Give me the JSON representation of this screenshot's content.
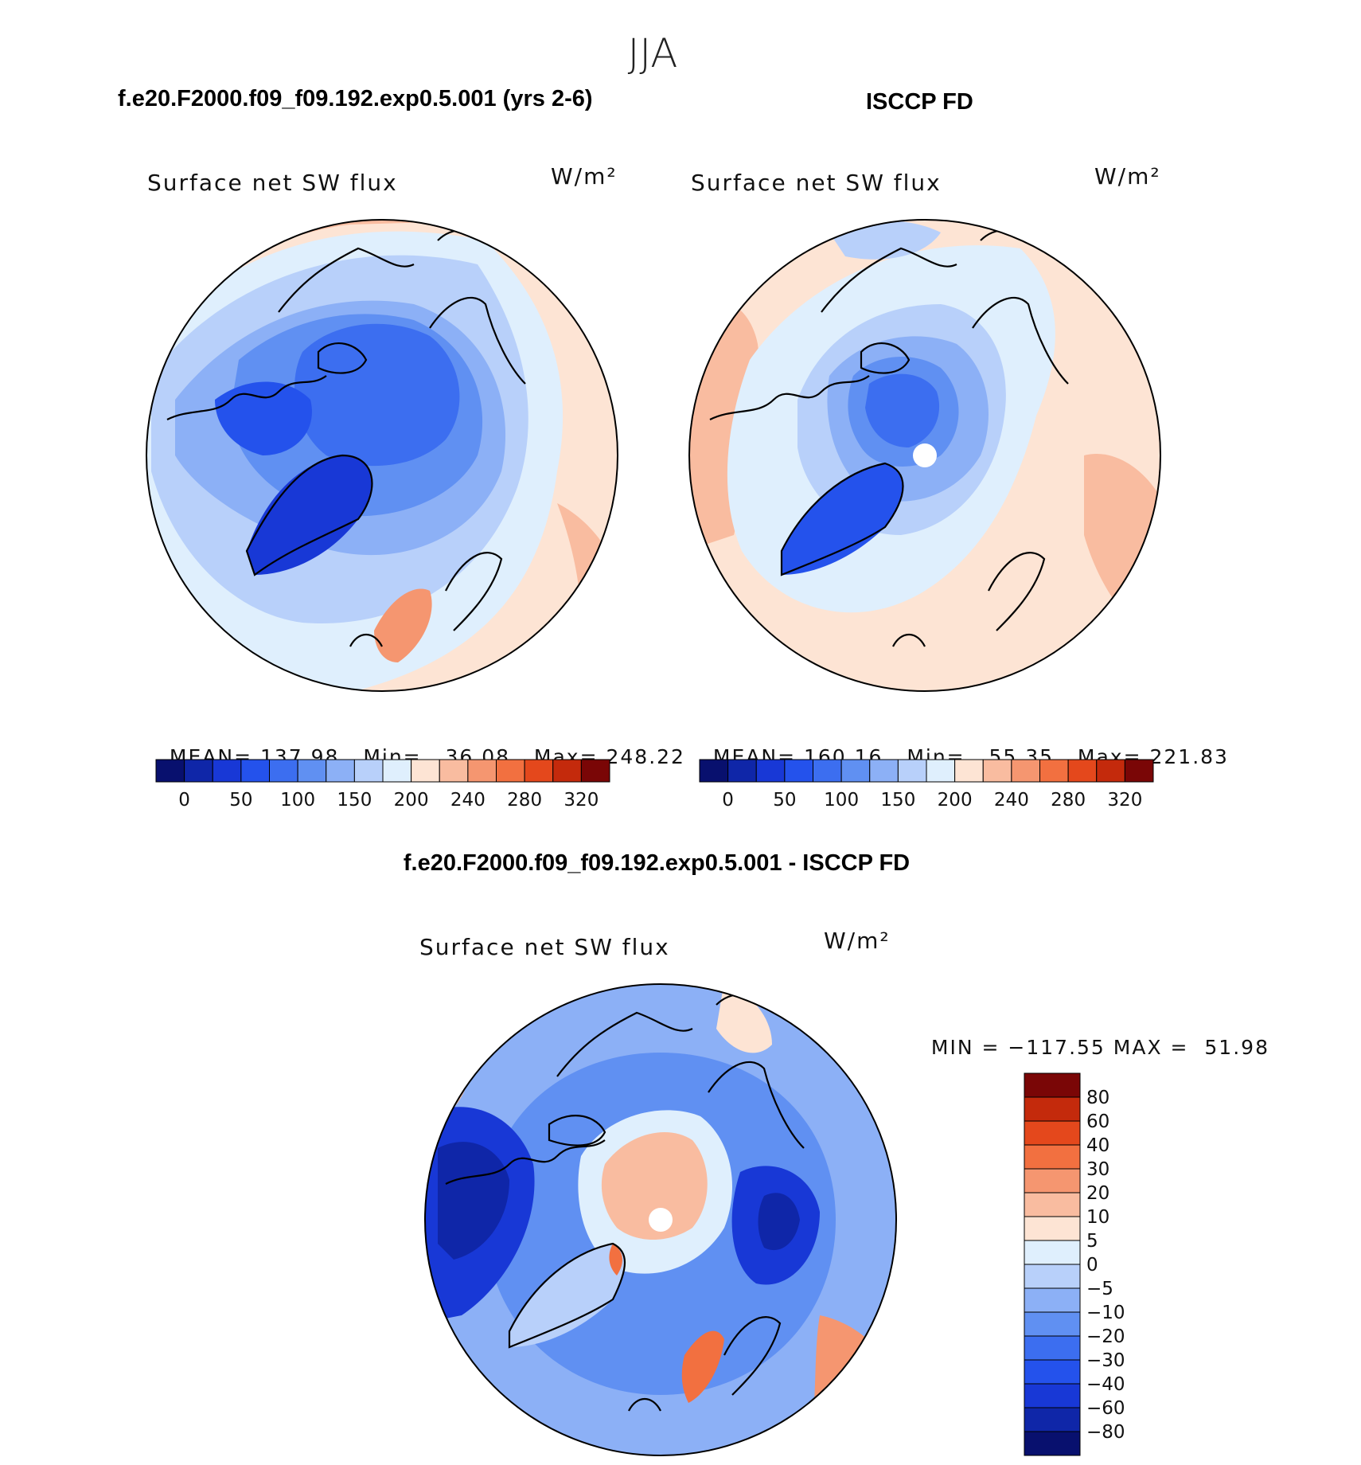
{
  "figure": {
    "season": "JJA",
    "units": "W/m²"
  },
  "chart_data": [
    {
      "type": "heatmap",
      "projection": "north-polar-stereographic",
      "title": "f.e20.F2000.f09_f09.192.exp0.5.001 (yrs 2-6)",
      "subtitle": "Surface net SW flux",
      "units": "W/m²",
      "stats": {
        "mean_label": "MEAN=",
        "mean": "137.98",
        "min_label": "Min=",
        "min": "36.08",
        "max_label": "Max=",
        "max": "248.22"
      },
      "colorbar": {
        "levels": [
          0,
          25,
          50,
          75,
          100,
          125,
          150,
          175,
          200,
          220,
          240,
          260,
          280,
          300,
          320
        ],
        "tick_labels": [
          "0",
          "50",
          "100",
          "150",
          "200",
          "240",
          "280",
          "320"
        ],
        "colors": [
          "#08106e",
          "#0f26a8",
          "#1838d6",
          "#2452ec",
          "#3c6ef0",
          "#6090f2",
          "#8cb0f6",
          "#b8d0fa",
          "#dfeffd",
          "#fde4d4",
          "#f9bca0",
          "#f59670",
          "#f27040",
          "#e4481c",
          "#c42a0c",
          "#7a0606"
        ]
      }
    },
    {
      "type": "heatmap",
      "projection": "north-polar-stereographic",
      "title": "ISCCP FD",
      "subtitle": "Surface net SW flux",
      "units": "W/m²",
      "stats": {
        "mean_label": "MEAN=",
        "mean": "160.16",
        "min_label": "Min=",
        "min": "55.35",
        "max_label": "Max=",
        "max": "221.83"
      },
      "colorbar": {
        "levels": [
          0,
          25,
          50,
          75,
          100,
          125,
          150,
          175,
          200,
          220,
          240,
          260,
          280,
          300,
          320
        ],
        "tick_labels": [
          "0",
          "50",
          "100",
          "150",
          "200",
          "240",
          "280",
          "320"
        ],
        "colors": [
          "#08106e",
          "#0f26a8",
          "#1838d6",
          "#2452ec",
          "#3c6ef0",
          "#6090f2",
          "#8cb0f6",
          "#b8d0fa",
          "#dfeffd",
          "#fde4d4",
          "#f9bca0",
          "#f59670",
          "#f27040",
          "#e4481c",
          "#c42a0c",
          "#7a0606"
        ]
      }
    },
    {
      "type": "heatmap",
      "projection": "north-polar-stereographic",
      "title": "f.e20.F2000.f09_f09.192.exp0.5.001 - ISCCP FD",
      "subtitle": "Surface net SW flux",
      "units": "W/m²",
      "stats": {
        "min_label": "MIN =",
        "min": "−117.55",
        "max_label": "MAX =",
        "max": "51.98"
      },
      "colorbar": {
        "orientation": "vertical",
        "tick_labels": [
          "80",
          "60",
          "40",
          "30",
          "20",
          "10",
          "5",
          "0",
          "−5",
          "−10",
          "−20",
          "−30",
          "−40",
          "−60",
          "−80"
        ],
        "colors": [
          "#7a0606",
          "#c42a0c",
          "#e4481c",
          "#f27040",
          "#f59670",
          "#f9bca0",
          "#fde4d4",
          "#dfeffd",
          "#b8d0fa",
          "#8cb0f6",
          "#6090f2",
          "#3c6ef0",
          "#2452ec",
          "#1838d6",
          "#0f26a8",
          "#08106e"
        ]
      }
    }
  ]
}
